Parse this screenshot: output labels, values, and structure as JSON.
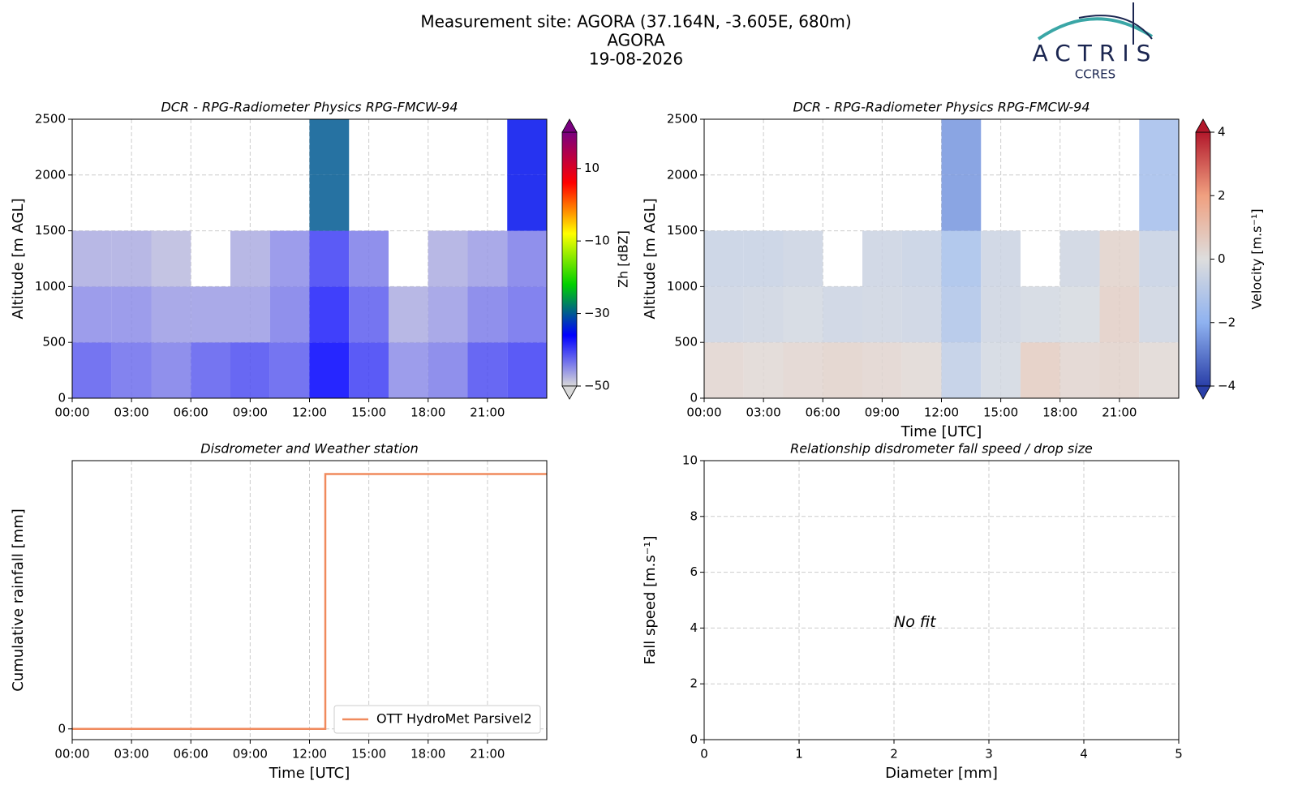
{
  "header": {
    "title": [
      "Measurement site: AGORA (37.164N, -3.605E, 680m)",
      "AGORA",
      "19-08-2026"
    ],
    "logo": {
      "name": "ACTRIS",
      "sub": "CCRES"
    }
  },
  "chart_data": [
    {
      "type": "heatmap",
      "title": "DCR - RPG-Radiometer Physics RPG-FMCW-94",
      "ylabel": "Altitude [m AGL]",
      "x_bins": [
        0,
        2,
        4,
        6,
        8,
        10,
        12,
        14,
        16,
        18,
        20,
        22,
        24
      ],
      "y_bins": [
        0,
        500,
        1000,
        1500,
        2000,
        2500
      ],
      "values": [
        [
          -42,
          -43,
          -44,
          -42,
          -41,
          -42,
          -36,
          -40,
          -45,
          -44,
          -41,
          -40
        ],
        [
          -45,
          -45,
          -46,
          -46,
          -46,
          -44,
          -38,
          -42,
          -47,
          -46,
          -44,
          -43
        ],
        [
          -47,
          -47,
          -48,
          null,
          -47,
          -45,
          -40,
          -44,
          null,
          -47,
          -46,
          -44
        ],
        [
          null,
          null,
          null,
          null,
          null,
          null,
          -30,
          null,
          null,
          null,
          null,
          -35
        ],
        [
          null,
          null,
          null,
          null,
          null,
          null,
          -30,
          null,
          null,
          null,
          null,
          -35
        ]
      ],
      "xlim": [
        0,
        24
      ],
      "xticks": [
        {
          "value": 0,
          "label": "00:00"
        },
        {
          "value": 3,
          "label": "03:00"
        },
        {
          "value": 6,
          "label": "06:00"
        },
        {
          "value": 9,
          "label": "09:00"
        },
        {
          "value": 12,
          "label": "12:00"
        },
        {
          "value": 15,
          "label": "15:00"
        },
        {
          "value": 18,
          "label": "18:00"
        },
        {
          "value": 21,
          "label": "21:00"
        }
      ],
      "ylim": [
        0,
        2500
      ],
      "yticks": [
        0,
        500,
        1000,
        1500,
        2000,
        2500
      ],
      "grid": true,
      "colormap": [
        "#d9d9d9",
        "#0000ff",
        "#00d000",
        "#ffff00",
        "#ff0000",
        "#7a0080"
      ],
      "clim": [
        -50,
        20
      ],
      "colorbar_label": "Zh [dBZ]",
      "cbar_ticks": [
        {
          "value": -50,
          "label": "−50"
        },
        {
          "value": -30,
          "label": "−30"
        },
        {
          "value": -10,
          "label": "−10"
        },
        10
      ]
    },
    {
      "type": "heatmap",
      "title": "DCR - RPG-Radiometer Physics RPG-FMCW-94",
      "ylabel": "Altitude [m AGL]",
      "xlabel": "Time [UTC]",
      "x_bins": [
        0,
        2,
        4,
        6,
        8,
        10,
        12,
        14,
        16,
        18,
        20,
        22,
        24
      ],
      "y_bins": [
        0,
        500,
        1000,
        1500,
        2000,
        2500
      ],
      "values": [
        [
          0.3,
          0.2,
          0.3,
          0.4,
          0.3,
          0.2,
          -0.8,
          -0.3,
          0.6,
          0.3,
          0.4,
          0.2
        ],
        [
          -0.5,
          -0.4,
          -0.3,
          -0.5,
          -0.4,
          -0.5,
          -1.2,
          -0.4,
          -0.3,
          -0.2,
          0.5,
          -0.4
        ],
        [
          -0.6,
          -0.6,
          -0.5,
          null,
          -0.5,
          -0.6,
          -1.4,
          -0.5,
          null,
          -0.4,
          0.4,
          -0.6
        ],
        [
          null,
          null,
          null,
          null,
          null,
          null,
          -2.5,
          null,
          null,
          null,
          null,
          -1.5
        ],
        [
          null,
          null,
          null,
          null,
          null,
          null,
          -2.5,
          null,
          null,
          null,
          null,
          -1.5
        ]
      ],
      "xlim": [
        0,
        24
      ],
      "xticks": [
        {
          "value": 0,
          "label": "00:00"
        },
        {
          "value": 3,
          "label": "03:00"
        },
        {
          "value": 6,
          "label": "06:00"
        },
        {
          "value": 9,
          "label": "09:00"
        },
        {
          "value": 12,
          "label": "12:00"
        },
        {
          "value": 15,
          "label": "15:00"
        },
        {
          "value": 18,
          "label": "18:00"
        },
        {
          "value": 21,
          "label": "21:00"
        }
      ],
      "ylim": [
        0,
        2500
      ],
      "yticks": [
        0,
        500,
        1000,
        1500,
        2000,
        2500
      ],
      "grid": true,
      "colormap": [
        "#2a3fa8",
        "#8fb2f0",
        "#dddddd",
        "#f0a080",
        "#b2182b"
      ],
      "clim": [
        -4,
        4
      ],
      "colorbar_label": "Velocity [m.s⁻¹]",
      "cbar_ticks": [
        {
          "value": -4,
          "label": "−4"
        },
        {
          "value": -2,
          "label": "−2"
        },
        0,
        2,
        4
      ]
    },
    {
      "type": "line",
      "title": "Disdrometer and Weather station",
      "ylabel": "Cumulative rainfall [mm]",
      "xlabel": "Time [UTC]",
      "x": [
        0,
        12.8,
        12.8,
        24
      ],
      "series": [
        {
          "name": "OTT HydroMet Parsivel2",
          "color": "#f08a5d",
          "values": [
            0,
            0,
            0.95,
            0.95
          ]
        }
      ],
      "xlim": [
        0,
        24
      ],
      "xticks": [
        {
          "value": 0,
          "label": "00:00"
        },
        {
          "value": 3,
          "label": "03:00"
        },
        {
          "value": 6,
          "label": "06:00"
        },
        {
          "value": 9,
          "label": "09:00"
        },
        {
          "value": 12,
          "label": "12:00"
        },
        {
          "value": 15,
          "label": "15:00"
        },
        {
          "value": 18,
          "label": "18:00"
        },
        {
          "value": 21,
          "label": "21:00"
        }
      ],
      "ylim": [
        -0.04,
        1.0
      ],
      "yticks": [
        0
      ],
      "grid": true,
      "legend": "lower right"
    },
    {
      "type": "scatter",
      "title": "Relationship disdrometer fall speed / drop size",
      "ylabel": "Fall speed [m.s⁻¹]",
      "xlabel": "Diameter [mm]",
      "annotation": "No fit",
      "xlim": [
        0,
        5
      ],
      "xticks": [
        0,
        1,
        2,
        3,
        4,
        5
      ],
      "ylim": [
        0,
        10
      ],
      "yticks": [
        0,
        2,
        4,
        6,
        8,
        10
      ],
      "grid": true
    }
  ]
}
